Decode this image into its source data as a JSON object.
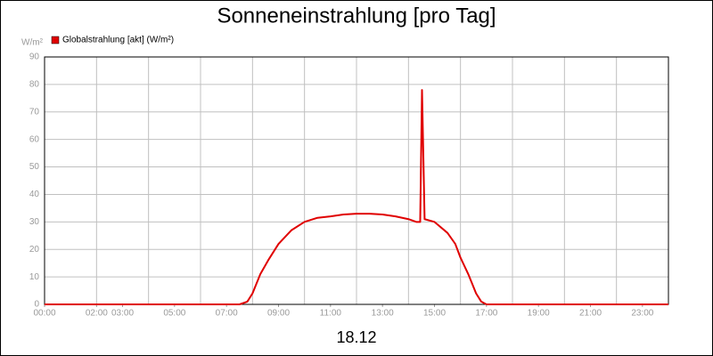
{
  "chart_data": {
    "type": "line",
    "title": "Sonneneinstrahlung [pro Tag]",
    "y_unit": "W/m²",
    "x_label": "18.12",
    "x": [
      0,
      7.5,
      7.8,
      8.0,
      8.3,
      8.6,
      9.0,
      9.5,
      10.0,
      10.5,
      11.0,
      11.5,
      12.0,
      12.5,
      13.0,
      13.5,
      14.0,
      14.3,
      14.45,
      14.52,
      14.62,
      15.0,
      15.5,
      15.8,
      16.0,
      16.3,
      16.6,
      16.8,
      17.0,
      24
    ],
    "series": [
      {
        "name": "Globalstrahlung [akt] (W/m²)",
        "color": "#e00000",
        "values": [
          0,
          0,
          1,
          4,
          11,
          16,
          22,
          27,
          30,
          31.5,
          32,
          32.7,
          33,
          33,
          32.7,
          32,
          31,
          30,
          30,
          78,
          31,
          30,
          26,
          22,
          17,
          11,
          4,
          1,
          0,
          0
        ]
      }
    ],
    "xlim": [
      0,
      24
    ],
    "xticks": [
      {
        "value": 0,
        "label": "00:00"
      },
      {
        "value": 2,
        "label": "02:00"
      },
      {
        "value": 3,
        "label": "03:00"
      },
      {
        "value": 5,
        "label": "05:00"
      },
      {
        "value": 7,
        "label": "07:00"
      },
      {
        "value": 9,
        "label": "09:00"
      },
      {
        "value": 11,
        "label": "11:00"
      },
      {
        "value": 13,
        "label": "13:00"
      },
      {
        "value": 15,
        "label": "15:00"
      },
      {
        "value": 17,
        "label": "17:00"
      },
      {
        "value": 19,
        "label": "19:00"
      },
      {
        "value": 21,
        "label": "21:00"
      },
      {
        "value": 23,
        "label": "23:00"
      }
    ],
    "xgrid": [
      0,
      2,
      4,
      6,
      8,
      10,
      12,
      14,
      16,
      18,
      20,
      22,
      24
    ],
    "ylim": [
      0,
      90
    ],
    "yticks": [
      0,
      10,
      20,
      30,
      40,
      50,
      60,
      70,
      80,
      90
    ],
    "grid": true
  }
}
